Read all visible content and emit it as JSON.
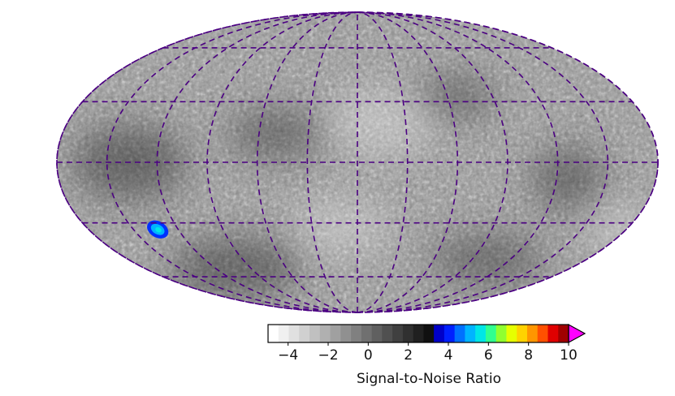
{
  "chart_data": {
    "type": "heatmap",
    "projection": "mollweide",
    "title": "",
    "graticule": {
      "style": "dashed",
      "color": "#4b0082",
      "longitude_step_deg": 30,
      "latitude_step_deg": 30
    },
    "hotspot": {
      "longitude_deg": -135,
      "latitude_deg": -30,
      "peak_value": 6.8
    },
    "colorbar": {
      "label": "Signal-to-Noise Ratio",
      "range": [
        -5,
        10
      ],
      "ticks": [
        -4,
        -2,
        0,
        2,
        4,
        6,
        8,
        10
      ],
      "tick_labels": [
        "−4",
        "−2",
        "0",
        "2",
        "4",
        "6",
        "8",
        "10"
      ],
      "extend": "max",
      "over_color": "#ff00ff",
      "colors": [
        "#ffffff",
        "#f0f0f0",
        "#e0e0e0",
        "#d0d0d0",
        "#c0c0c0",
        "#b0b0b0",
        "#a0a0a0",
        "#909090",
        "#808080",
        "#707070",
        "#606060",
        "#505050",
        "#404040",
        "#303030",
        "#202020",
        "#101010",
        "#0000c8",
        "#0020ff",
        "#0070ff",
        "#00b4ff",
        "#00e6e6",
        "#30ff90",
        "#90ff30",
        "#e6ff00",
        "#ffd200",
        "#ff9600",
        "#ff5000",
        "#e00000",
        "#a00000"
      ]
    }
  }
}
